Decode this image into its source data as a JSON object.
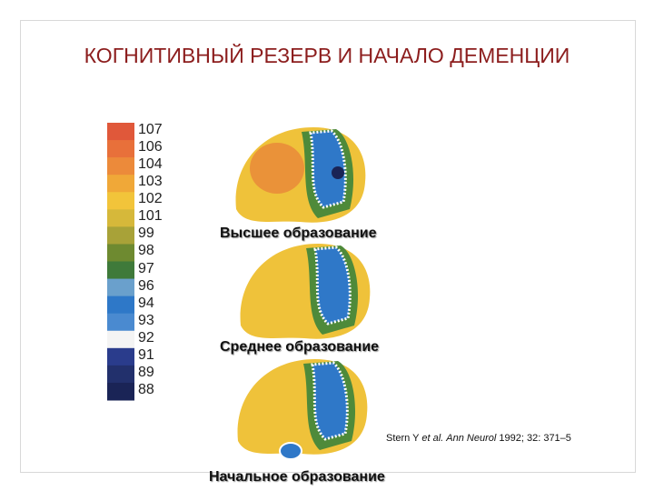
{
  "header": {
    "title": "КОГНИТИВНЫЙ РЕЗЕРВ И НАЧАЛО ДЕМЕНЦИИ"
  },
  "scale": {
    "labels": [
      "107",
      "106",
      "104",
      "103",
      "102",
      "101",
      "99",
      "98",
      "97",
      "96",
      "94",
      "93",
      "92",
      "91",
      "89",
      "88"
    ],
    "colors": [
      "#e0583a",
      "#e8703a",
      "#ec8a3a",
      "#f0a838",
      "#f2c43a",
      "#d6b83a",
      "#a8a238",
      "#6e8a30",
      "#3f7a3a",
      "#6aa0cc",
      "#2e78c8",
      "#4a8ad0",
      "#f4f4f4",
      "#2a3c8c",
      "#22306c",
      "#1a2456"
    ]
  },
  "images": [
    {
      "caption": "Высшее образование"
    },
    {
      "caption": "Среднее образование"
    },
    {
      "caption": "Начальное образование"
    }
  ],
  "citation": {
    "author": "Stern Y",
    "etal": "et al.",
    "journal": "Ann Neurol",
    "ref": "1992; 32: 371–5"
  }
}
